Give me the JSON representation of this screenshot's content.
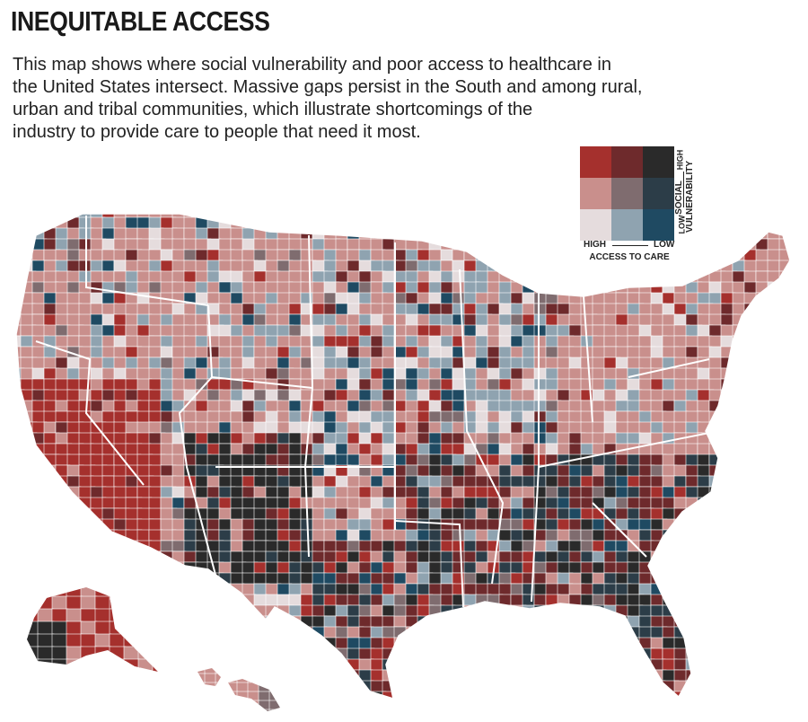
{
  "header": {
    "title": "INEQUITABLE ACCESS",
    "description_lines": [
      "This map shows where social vulnerability and poor access to healthcare in",
      "the United States intersect. Massive gaps persist in the South and among rural,",
      "urban and tribal communities, which illustrate shortcomings of the",
      "industry to provide care to people that need it most."
    ]
  },
  "legend": {
    "x_axis_title": "ACCESS TO CARE",
    "x_low_end": "HIGH",
    "x_high_end": "LOW",
    "y_axis_title_lines": [
      "SOCIAL",
      "VULNERABILITY"
    ],
    "y_low_end": "LOW",
    "y_high_end": "HIGH",
    "grid_colors": [
      [
        "#a5302d",
        "#6e2a2c",
        "#2a2a2a"
      ],
      [
        "#c98f8c",
        "#7f6c6f",
        "#2c3d48"
      ],
      [
        "#e5dcdd",
        "#8fa3b0",
        "#1f4a62"
      ]
    ]
  },
  "map": {
    "class_colors": {
      "high_access_high_vulnerability": "#a5302d",
      "mid_access_high_vulnerability": "#6e2a2c",
      "low_access_high_vulnerability": "#2a2a2a",
      "high_access_mid_vulnerability": "#c98f8c",
      "mid_access_mid_vulnerability": "#7f6c6f",
      "low_access_mid_vulnerability": "#2c3d48",
      "high_access_low_vulnerability": "#e5dcdd",
      "mid_access_low_vulnerability": "#8fa3b0",
      "low_access_low_vulnerability": "#1f4a62"
    },
    "border_color": "#ffffff"
  }
}
